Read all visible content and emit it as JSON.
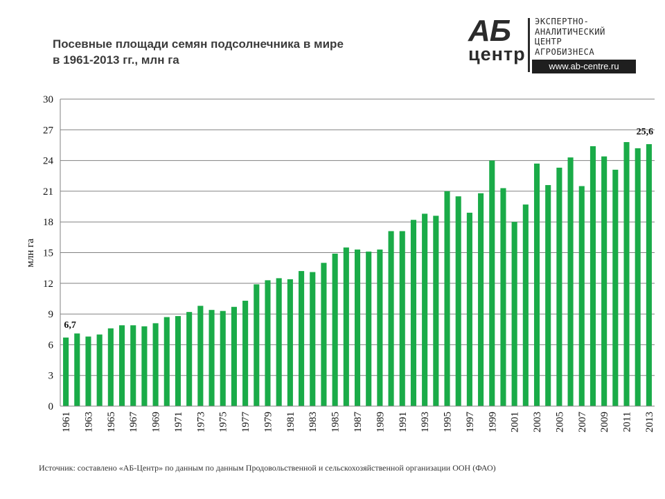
{
  "title_line1": "Посевные площади семян подсолнечника в мире",
  "title_line2": "в 1961-2013 гг., млн га",
  "logo": {
    "mark_top": "АБ",
    "mark_bottom": "центр",
    "line1": "ЭКСПЕРТНО-",
    "line2": "АНАЛИТИЧЕСКИЙ",
    "line3": "ЦЕНТР",
    "line4": "АГРОБИЗНЕСА",
    "url": "www.ab-centre.ru"
  },
  "source": "Источник: составлено «АБ-Центр»  по данным по данным Продовольственной и сельскохозяйственной  организации ООН (ФАО)",
  "colors": {
    "bar": "#1aab48",
    "grid": "#808080",
    "axis": "#808080"
  },
  "chart_data": {
    "type": "bar",
    "title": "Посевные площади семян подсолнечника в мире в 1961-2013 гг., млн га",
    "ylabel": "млн га",
    "xlabel": "",
    "ylim": [
      0,
      30
    ],
    "yticks": [
      0,
      3,
      6,
      9,
      12,
      15,
      18,
      21,
      24,
      27,
      30
    ],
    "grid": true,
    "categories": [
      "1961",
      "1962",
      "1963",
      "1964",
      "1965",
      "1966",
      "1967",
      "1968",
      "1969",
      "1970",
      "1971",
      "1972",
      "1973",
      "1974",
      "1975",
      "1976",
      "1977",
      "1978",
      "1979",
      "1980",
      "1981",
      "1982",
      "1983",
      "1984",
      "1985",
      "1986",
      "1987",
      "1988",
      "1989",
      "1990",
      "1991",
      "1992",
      "1993",
      "1994",
      "1995",
      "1996",
      "1997",
      "1998",
      "1999",
      "2000",
      "2001",
      "2002",
      "2003",
      "2004",
      "2005",
      "2006",
      "2007",
      "2008",
      "2009",
      "2010",
      "2011",
      "2012",
      "2013"
    ],
    "tick_labels": [
      "1961",
      "1963",
      "1965",
      "1967",
      "1969",
      "1971",
      "1973",
      "1975",
      "1977",
      "1979",
      "1981",
      "1983",
      "1985",
      "1987",
      "1989",
      "1991",
      "1993",
      "1995",
      "1997",
      "1999",
      "2001",
      "2003",
      "2005",
      "2007",
      "2009",
      "2011",
      "2013"
    ],
    "values": [
      6.7,
      7.1,
      6.8,
      7.0,
      7.6,
      7.9,
      7.9,
      7.8,
      8.1,
      8.7,
      8.8,
      9.2,
      9.8,
      9.4,
      9.3,
      9.7,
      10.3,
      11.9,
      12.3,
      12.5,
      12.4,
      13.2,
      13.1,
      14.0,
      14.9,
      15.5,
      15.3,
      15.1,
      15.3,
      17.1,
      17.1,
      18.2,
      18.8,
      18.6,
      21.0,
      20.5,
      18.9,
      20.8,
      24.0,
      21.3,
      18.0,
      19.7,
      23.7,
      21.6,
      23.3,
      24.3,
      21.5,
      25.4,
      24.4,
      23.1,
      25.8,
      25.2,
      25.6
    ],
    "data_labels": [
      {
        "category": "1961",
        "label": "6,7"
      },
      {
        "category": "2013",
        "label": "25,6"
      }
    ]
  }
}
